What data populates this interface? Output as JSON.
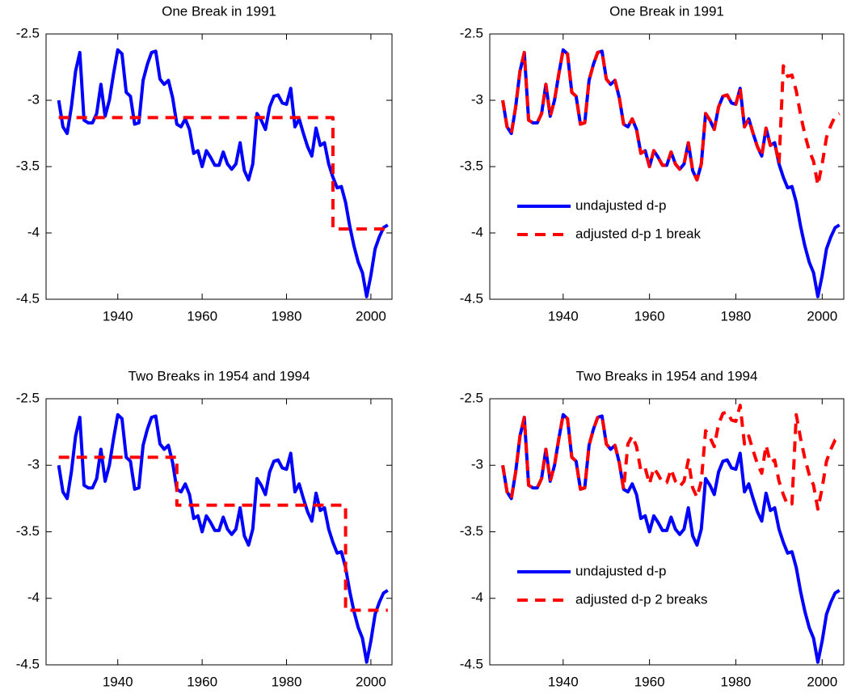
{
  "chart_data": [
    {
      "type": "line",
      "title": "One Break in 1991",
      "x": [
        1926,
        1927,
        1928,
        1929,
        1930,
        1931,
        1932,
        1933,
        1934,
        1935,
        1936,
        1937,
        1938,
        1939,
        1940,
        1941,
        1942,
        1943,
        1944,
        1945,
        1946,
        1947,
        1948,
        1949,
        1950,
        1951,
        1952,
        1953,
        1954,
        1955,
        1956,
        1957,
        1958,
        1959,
        1960,
        1961,
        1962,
        1963,
        1964,
        1965,
        1966,
        1967,
        1968,
        1969,
        1970,
        1971,
        1972,
        1973,
        1974,
        1975,
        1976,
        1977,
        1978,
        1979,
        1980,
        1981,
        1982,
        1983,
        1984,
        1985,
        1986,
        1987,
        1988,
        1989,
        1990,
        1991,
        1992,
        1993,
        1994,
        1995,
        1996,
        1997,
        1998,
        1999,
        2000,
        2001,
        2002,
        2003,
        2004
      ],
      "xlim": [
        1923,
        2005
      ],
      "ylim": [
        -4.5,
        -2.5
      ],
      "xticks": [
        1940,
        1960,
        1980,
        2000
      ],
      "yticks": [
        -2.5,
        -3,
        -3.5,
        -4,
        -4.5
      ],
      "series": [
        {
          "color": "#0000ff",
          "dash": false,
          "values": [
            -3.0,
            -3.2,
            -3.25,
            -3.05,
            -2.78,
            -2.64,
            -3.15,
            -3.17,
            -3.17,
            -3.1,
            -2.88,
            -3.12,
            -3.0,
            -2.8,
            -2.62,
            -2.65,
            -2.94,
            -2.97,
            -3.18,
            -3.17,
            -2.85,
            -2.73,
            -2.64,
            -2.63,
            -2.84,
            -2.88,
            -2.85,
            -2.98,
            -3.18,
            -3.2,
            -3.14,
            -3.22,
            -3.4,
            -3.38,
            -3.5,
            -3.38,
            -3.43,
            -3.49,
            -3.49,
            -3.39,
            -3.48,
            -3.52,
            -3.48,
            -3.32,
            -3.53,
            -3.6,
            -3.48,
            -3.1,
            -3.15,
            -3.22,
            -3.05,
            -2.97,
            -2.96,
            -3.02,
            -3.03,
            -2.91,
            -3.2,
            -3.14,
            -3.25,
            -3.35,
            -3.42,
            -3.21,
            -3.34,
            -3.32,
            -3.48,
            -3.58,
            -3.66,
            -3.65,
            -3.77,
            -3.95,
            -4.1,
            -4.22,
            -4.3,
            -4.48,
            -4.32,
            -4.12,
            -4.03,
            -3.96,
            -3.94
          ]
        },
        {
          "color": "#ff0000",
          "dash": true,
          "x": [
            1926,
            1991,
            1991,
            2004
          ],
          "values": [
            -3.13,
            -3.13,
            -3.97,
            -3.97
          ]
        }
      ]
    },
    {
      "type": "line",
      "title": "One Break in 1991",
      "x": [
        1926,
        1927,
        1928,
        1929,
        1930,
        1931,
        1932,
        1933,
        1934,
        1935,
        1936,
        1937,
        1938,
        1939,
        1940,
        1941,
        1942,
        1943,
        1944,
        1945,
        1946,
        1947,
        1948,
        1949,
        1950,
        1951,
        1952,
        1953,
        1954,
        1955,
        1956,
        1957,
        1958,
        1959,
        1960,
        1961,
        1962,
        1963,
        1964,
        1965,
        1966,
        1967,
        1968,
        1969,
        1970,
        1971,
        1972,
        1973,
        1974,
        1975,
        1976,
        1977,
        1978,
        1979,
        1980,
        1981,
        1982,
        1983,
        1984,
        1985,
        1986,
        1987,
        1988,
        1989,
        1990,
        1991,
        1992,
        1993,
        1994,
        1995,
        1996,
        1997,
        1998,
        1999,
        2000,
        2001,
        2002,
        2003,
        2004
      ],
      "xlim": [
        1923,
        2005
      ],
      "ylim": [
        -4.5,
        -2.5
      ],
      "xticks": [
        1940,
        1960,
        1980,
        2000
      ],
      "yticks": [
        -2.5,
        -3,
        -3.5,
        -4,
        -4.5
      ],
      "legend": "lower left",
      "series": [
        {
          "name": "undajusted d-p",
          "color": "#0000ff",
          "dash": false,
          "values": [
            -3.0,
            -3.2,
            -3.25,
            -3.05,
            -2.78,
            -2.64,
            -3.15,
            -3.17,
            -3.17,
            -3.1,
            -2.88,
            -3.12,
            -3.0,
            -2.8,
            -2.62,
            -2.65,
            -2.94,
            -2.97,
            -3.18,
            -3.17,
            -2.85,
            -2.73,
            -2.64,
            -2.63,
            -2.84,
            -2.88,
            -2.85,
            -2.98,
            -3.18,
            -3.2,
            -3.14,
            -3.22,
            -3.4,
            -3.38,
            -3.5,
            -3.38,
            -3.43,
            -3.49,
            -3.49,
            -3.39,
            -3.48,
            -3.52,
            -3.48,
            -3.32,
            -3.53,
            -3.6,
            -3.48,
            -3.1,
            -3.15,
            -3.22,
            -3.05,
            -2.97,
            -2.96,
            -3.02,
            -3.03,
            -2.91,
            -3.2,
            -3.14,
            -3.25,
            -3.35,
            -3.42,
            -3.21,
            -3.34,
            -3.32,
            -3.48,
            -3.58,
            -3.66,
            -3.65,
            -3.77,
            -3.95,
            -4.1,
            -4.22,
            -4.3,
            -4.48,
            -4.32,
            -4.12,
            -4.03,
            -3.96,
            -3.94
          ]
        },
        {
          "name": "adjusted d-p 1 break",
          "color": "#ff0000",
          "dash": true,
          "values": [
            -3.0,
            -3.2,
            -3.25,
            -3.05,
            -2.78,
            -2.64,
            -3.15,
            -3.17,
            -3.17,
            -3.1,
            -2.88,
            -3.12,
            -3.0,
            -2.8,
            -2.62,
            -2.65,
            -2.94,
            -2.97,
            -3.18,
            -3.17,
            -2.85,
            -2.73,
            -2.64,
            -2.63,
            -2.84,
            -2.88,
            -2.85,
            -2.98,
            -3.18,
            -3.2,
            -3.14,
            -3.22,
            -3.4,
            -3.38,
            -3.5,
            -3.38,
            -3.43,
            -3.49,
            -3.49,
            -3.39,
            -3.48,
            -3.52,
            -3.48,
            -3.32,
            -3.53,
            -3.6,
            -3.48,
            -3.1,
            -3.15,
            -3.22,
            -3.05,
            -2.97,
            -2.96,
            -3.02,
            -3.03,
            -2.91,
            -3.2,
            -3.14,
            -3.25,
            -3.35,
            -3.42,
            -3.21,
            -3.34,
            -3.32,
            -3.48,
            -2.74,
            -2.82,
            -2.81,
            -2.93,
            -3.11,
            -3.26,
            -3.38,
            -3.46,
            -3.64,
            -3.48,
            -3.28,
            -3.19,
            -3.12,
            -3.1
          ]
        }
      ]
    },
    {
      "type": "line",
      "title": "Two Breaks in 1954 and 1994",
      "x": [
        1926,
        1927,
        1928,
        1929,
        1930,
        1931,
        1932,
        1933,
        1934,
        1935,
        1936,
        1937,
        1938,
        1939,
        1940,
        1941,
        1942,
        1943,
        1944,
        1945,
        1946,
        1947,
        1948,
        1949,
        1950,
        1951,
        1952,
        1953,
        1954,
        1955,
        1956,
        1957,
        1958,
        1959,
        1960,
        1961,
        1962,
        1963,
        1964,
        1965,
        1966,
        1967,
        1968,
        1969,
        1970,
        1971,
        1972,
        1973,
        1974,
        1975,
        1976,
        1977,
        1978,
        1979,
        1980,
        1981,
        1982,
        1983,
        1984,
        1985,
        1986,
        1987,
        1988,
        1989,
        1990,
        1991,
        1992,
        1993,
        1994,
        1995,
        1996,
        1997,
        1998,
        1999,
        2000,
        2001,
        2002,
        2003,
        2004
      ],
      "xlim": [
        1923,
        2005
      ],
      "ylim": [
        -4.5,
        -2.5
      ],
      "xticks": [
        1940,
        1960,
        1980,
        2000
      ],
      "yticks": [
        -2.5,
        -3,
        -3.5,
        -4,
        -4.5
      ],
      "series": [
        {
          "color": "#0000ff",
          "dash": false,
          "values": [
            -3.0,
            -3.2,
            -3.25,
            -3.05,
            -2.78,
            -2.64,
            -3.15,
            -3.17,
            -3.17,
            -3.1,
            -2.88,
            -3.12,
            -3.0,
            -2.8,
            -2.62,
            -2.65,
            -2.94,
            -2.97,
            -3.18,
            -3.17,
            -2.85,
            -2.73,
            -2.64,
            -2.63,
            -2.84,
            -2.88,
            -2.85,
            -2.98,
            -3.18,
            -3.2,
            -3.14,
            -3.22,
            -3.4,
            -3.38,
            -3.5,
            -3.38,
            -3.43,
            -3.49,
            -3.49,
            -3.39,
            -3.48,
            -3.52,
            -3.48,
            -3.32,
            -3.53,
            -3.6,
            -3.48,
            -3.1,
            -3.15,
            -3.22,
            -3.05,
            -2.97,
            -2.96,
            -3.02,
            -3.03,
            -2.91,
            -3.2,
            -3.14,
            -3.25,
            -3.35,
            -3.42,
            -3.21,
            -3.34,
            -3.32,
            -3.48,
            -3.58,
            -3.66,
            -3.65,
            -3.77,
            -3.95,
            -4.1,
            -4.22,
            -4.3,
            -4.48,
            -4.32,
            -4.12,
            -4.03,
            -3.96,
            -3.94
          ]
        },
        {
          "color": "#ff0000",
          "dash": true,
          "x": [
            1926,
            1954,
            1954,
            1994,
            1994,
            2004
          ],
          "values": [
            -2.94,
            -2.94,
            -3.3,
            -3.3,
            -4.09,
            -4.09
          ]
        }
      ]
    },
    {
      "type": "line",
      "title": "Two Breaks in 1954 and 1994",
      "x": [
        1926,
        1927,
        1928,
        1929,
        1930,
        1931,
        1932,
        1933,
        1934,
        1935,
        1936,
        1937,
        1938,
        1939,
        1940,
        1941,
        1942,
        1943,
        1944,
        1945,
        1946,
        1947,
        1948,
        1949,
        1950,
        1951,
        1952,
        1953,
        1954,
        1955,
        1956,
        1957,
        1958,
        1959,
        1960,
        1961,
        1962,
        1963,
        1964,
        1965,
        1966,
        1967,
        1968,
        1969,
        1970,
        1971,
        1972,
        1973,
        1974,
        1975,
        1976,
        1977,
        1978,
        1979,
        1980,
        1981,
        1982,
        1983,
        1984,
        1985,
        1986,
        1987,
        1988,
        1989,
        1990,
        1991,
        1992,
        1993,
        1994,
        1995,
        1996,
        1997,
        1998,
        1999,
        2000,
        2001,
        2002,
        2003,
        2004
      ],
      "xlim": [
        1923,
        2005
      ],
      "ylim": [
        -4.5,
        -2.5
      ],
      "xticks": [
        1940,
        1960,
        1980,
        2000
      ],
      "yticks": [
        -2.5,
        -3,
        -3.5,
        -4,
        -4.5
      ],
      "legend": "lower left",
      "series": [
        {
          "name": "undajusted d-p",
          "color": "#0000ff",
          "dash": false,
          "values": [
            -3.0,
            -3.2,
            -3.25,
            -3.05,
            -2.78,
            -2.64,
            -3.15,
            -3.17,
            -3.17,
            -3.1,
            -2.88,
            -3.12,
            -3.0,
            -2.8,
            -2.62,
            -2.65,
            -2.94,
            -2.97,
            -3.18,
            -3.17,
            -2.85,
            -2.73,
            -2.64,
            -2.63,
            -2.84,
            -2.88,
            -2.85,
            -2.98,
            -3.18,
            -3.2,
            -3.14,
            -3.22,
            -3.4,
            -3.38,
            -3.5,
            -3.38,
            -3.43,
            -3.49,
            -3.49,
            -3.39,
            -3.48,
            -3.52,
            -3.48,
            -3.32,
            -3.53,
            -3.6,
            -3.48,
            -3.1,
            -3.15,
            -3.22,
            -3.05,
            -2.97,
            -2.96,
            -3.02,
            -3.03,
            -2.91,
            -3.2,
            -3.14,
            -3.25,
            -3.35,
            -3.42,
            -3.21,
            -3.34,
            -3.32,
            -3.48,
            -3.58,
            -3.66,
            -3.65,
            -3.77,
            -3.95,
            -4.1,
            -4.22,
            -4.3,
            -4.48,
            -4.32,
            -4.12,
            -4.03,
            -3.96,
            -3.94
          ]
        },
        {
          "name": "adjusted d-p 2 breaks",
          "color": "#ff0000",
          "dash": true,
          "values": [
            -3.0,
            -3.2,
            -3.25,
            -3.05,
            -2.78,
            -2.64,
            -3.15,
            -3.17,
            -3.17,
            -3.1,
            -2.88,
            -3.12,
            -3.0,
            -2.8,
            -2.62,
            -2.65,
            -2.94,
            -2.97,
            -3.18,
            -3.17,
            -2.85,
            -2.73,
            -2.64,
            -2.63,
            -2.84,
            -2.88,
            -2.85,
            -2.98,
            -3.18,
            -2.84,
            -2.78,
            -2.86,
            -3.04,
            -3.02,
            -3.14,
            -3.02,
            -3.07,
            -3.13,
            -3.13,
            -3.03,
            -3.12,
            -3.16,
            -3.12,
            -2.96,
            -3.17,
            -3.24,
            -3.12,
            -2.74,
            -2.79,
            -2.86,
            -2.69,
            -2.61,
            -2.6,
            -2.66,
            -2.67,
            -2.55,
            -2.84,
            -2.78,
            -2.89,
            -2.99,
            -3.06,
            -2.85,
            -2.98,
            -2.96,
            -3.12,
            -3.22,
            -3.3,
            -3.29,
            -2.62,
            -2.8,
            -2.95,
            -3.07,
            -3.15,
            -3.33,
            -3.17,
            -2.97,
            -2.88,
            -2.81,
            -2.79
          ]
        }
      ]
    }
  ]
}
